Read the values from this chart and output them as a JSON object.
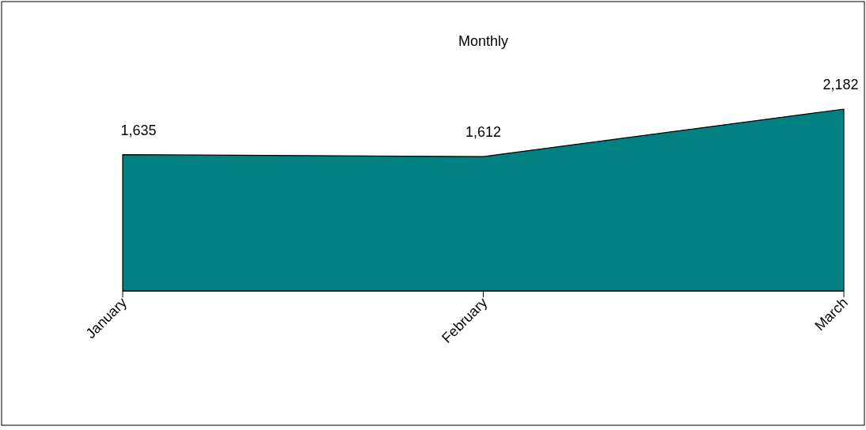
{
  "chart_data": {
    "type": "area",
    "title": "Monthly",
    "categories": [
      "January",
      "February",
      "March"
    ],
    "series": [
      {
        "color": "#008080",
        "values": [
          1635,
          1612,
          2182
        ],
        "value_labels": [
          "1,635",
          "1,612",
          "2,182"
        ]
      }
    ]
  }
}
